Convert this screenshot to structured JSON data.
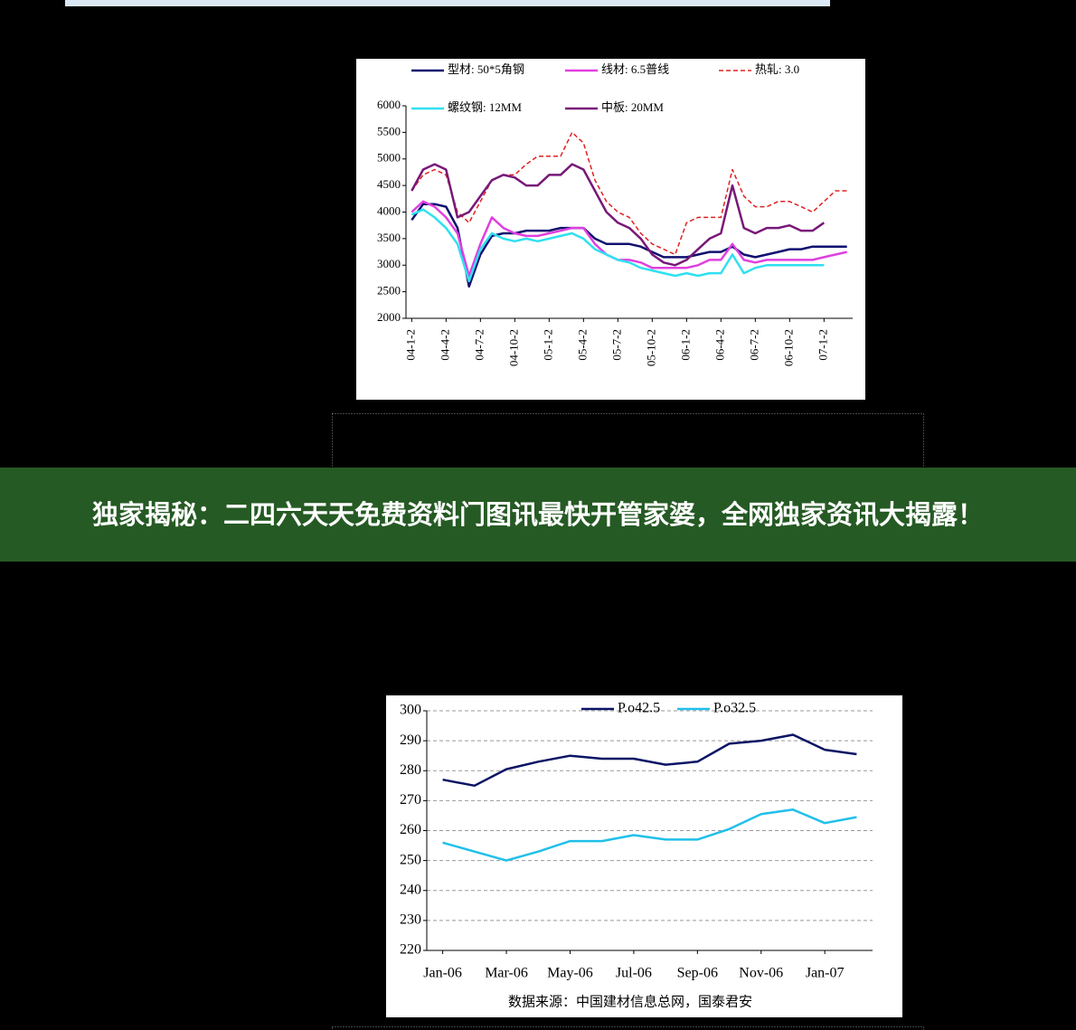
{
  "banner": {
    "title": "独家揭秘：二四六天天免费资料门图讯最快开管家婆，全网独家资讯大揭露！"
  },
  "chart_data": [
    {
      "type": "line",
      "categories": [
        "04-1-2",
        null,
        null,
        "04-4-2",
        null,
        null,
        "04-7-2",
        null,
        null,
        "04-10-2",
        null,
        null,
        "05-1-2",
        null,
        null,
        "05-4-2",
        null,
        null,
        "05-7-2",
        null,
        null,
        "05-10-2",
        null,
        null,
        "06-1-2",
        null,
        null,
        "06-4-2",
        null,
        null,
        "06-7-2",
        null,
        null,
        "06-10-2",
        null,
        null,
        "07-1-2",
        null,
        null
      ],
      "ylim": [
        2000,
        6000
      ],
      "yticks": [
        2000,
        2500,
        3000,
        3500,
        4000,
        4500,
        5000,
        5500,
        6000
      ],
      "grid": false,
      "series": [
        {
          "name": "型材: 50*5角钢",
          "color": "#101070",
          "dashed": false,
          "values": [
            3850,
            4150,
            4150,
            4100,
            3700,
            2600,
            3200,
            3550,
            3600,
            3600,
            3650,
            3650,
            3650,
            3700,
            3700,
            3700,
            3500,
            3400,
            3400,
            3400,
            3350,
            3250,
            3150,
            3150,
            3150,
            3200,
            3250,
            3250,
            3350,
            3200,
            3150,
            3200,
            3250,
            3300,
            3300,
            3350,
            3350,
            3350,
            3350
          ]
        },
        {
          "name": "线材: 6.5普线",
          "color": "#e040e0",
          "dashed": false,
          "values": [
            4000,
            4200,
            4100,
            3900,
            3600,
            2800,
            3400,
            3900,
            3700,
            3600,
            3550,
            3550,
            3600,
            3650,
            3700,
            3700,
            3400,
            3200,
            3100,
            3100,
            3050,
            2950,
            2950,
            2950,
            2950,
            3000,
            3100,
            3100,
            3400,
            3100,
            3050,
            3100,
            3100,
            3100,
            3100,
            3100,
            3150,
            3200,
            3250
          ]
        },
        {
          "name": "热轧: 3.0",
          "color": "#e02020",
          "dashed": true,
          "values": [
            4400,
            4700,
            4800,
            4700,
            4000,
            3800,
            4200,
            4600,
            4700,
            4700,
            4900,
            5050,
            5050,
            5050,
            5500,
            5300,
            4600,
            4200,
            4000,
            3900,
            3600,
            3400,
            3300,
            3200,
            3800,
            3900,
            3900,
            3900,
            4800,
            4300,
            4100,
            4100,
            4200,
            4200,
            4100,
            4000,
            4200,
            4400,
            4400
          ]
        },
        {
          "name": "螺纹钢: 12MM",
          "color": "#30e0f0",
          "dashed": false,
          "values": [
            3950,
            4050,
            3900,
            3700,
            3400,
            2700,
            3300,
            3600,
            3500,
            3450,
            3500,
            3450,
            3500,
            3550,
            3600,
            3500,
            3300,
            3200,
            3100,
            3050,
            2950,
            2900,
            2850,
            2800,
            2850,
            2800,
            2850,
            2850,
            3200,
            2850,
            2950,
            3000,
            3000,
            3000,
            3000,
            3000,
            3000,
            null,
            null
          ]
        },
        {
          "name": "中板: 20MM",
          "color": "#781878",
          "dashed": false,
          "values": [
            4400,
            4800,
            4900,
            4800,
            3900,
            4000,
            4300,
            4600,
            4700,
            4650,
            4500,
            4500,
            4700,
            4700,
            4900,
            4800,
            4400,
            4000,
            3800,
            3700,
            3500,
            3200,
            3050,
            3000,
            3100,
            3300,
            3500,
            3600,
            4500,
            3700,
            3600,
            3700,
            3700,
            3750,
            3650,
            3650,
            3800,
            null,
            null
          ]
        }
      ]
    },
    {
      "type": "line",
      "categories": [
        "Jan-06",
        null,
        "Mar-06",
        null,
        "May-06",
        null,
        "Jul-06",
        null,
        "Sep-06",
        null,
        "Nov-06",
        null,
        "Jan-07",
        null
      ],
      "ylim": [
        220,
        300
      ],
      "yticks": [
        220,
        230,
        240,
        250,
        260,
        270,
        280,
        290,
        300
      ],
      "grid": true,
      "note": "数据来源：中国建材信息总网，国泰君安",
      "series": [
        {
          "name": "P.o42.5",
          "color": "#0a1464",
          "dashed": false,
          "values": [
            277,
            275,
            280.5,
            283,
            285,
            284,
            284,
            282,
            283,
            289,
            290,
            292,
            287,
            285.5
          ]
        },
        {
          "name": "P.o32.5",
          "color": "#20c0ea",
          "dashed": false,
          "values": [
            256,
            253,
            250,
            253,
            256.5,
            256.5,
            258.5,
            257,
            257,
            260.5,
            265.5,
            267,
            262.5,
            264.5
          ]
        }
      ]
    }
  ]
}
